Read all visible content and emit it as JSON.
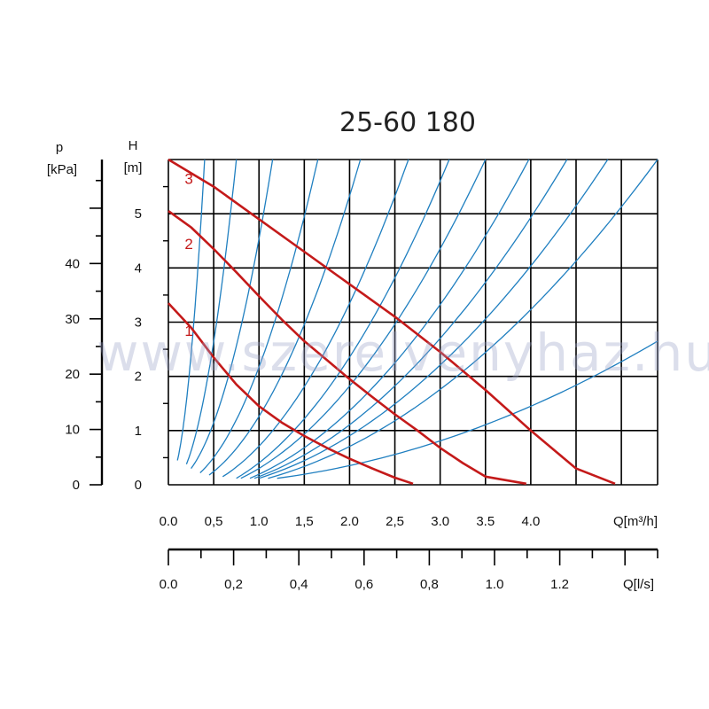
{
  "chart_data": {
    "type": "line",
    "title": "25-60 180",
    "watermark": "www.szerelvenyhaz.hu",
    "axes": {
      "h": {
        "label_symbol": "H",
        "label_unit": "[m]",
        "min": 0,
        "max": 6,
        "ticks": [
          "0",
          "1",
          "2",
          "3",
          "4",
          "5"
        ]
      },
      "p": {
        "label_symbol": "p",
        "label_unit": "[kPa]",
        "min": 0,
        "max": 58.8,
        "ticks": [
          "0",
          "10",
          "20",
          "30",
          "40"
        ]
      },
      "q_m3h": {
        "label": "Q[m³/h]",
        "min": 0,
        "max": 5.4,
        "ticks": [
          "0.0",
          "0,5",
          "1.0",
          "1,5",
          "2.0",
          "2,5",
          "3.0",
          "3.5",
          "4.0"
        ]
      },
      "q_ls": {
        "label": "Q[l/s]",
        "min": 0,
        "max": 1.5,
        "ticks": [
          "0.0",
          "0,2",
          "0,4",
          "0,6",
          "0,8",
          "1.0",
          "1.2"
        ]
      }
    },
    "grid": true,
    "colors": {
      "pump_curve": "#c41a1a",
      "system_curve": "#1f7fc0",
      "grid": "#000000"
    },
    "series": [
      {
        "name": "1",
        "x": [
          0,
          0.25,
          0.5,
          0.75,
          1.0,
          1.25,
          1.5,
          1.75,
          2.0,
          2.25,
          2.5,
          2.7
        ],
        "y": [
          3.35,
          2.9,
          2.35,
          1.85,
          1.45,
          1.15,
          0.9,
          0.68,
          0.48,
          0.3,
          0.13,
          0.02
        ]
      },
      {
        "name": "2",
        "x": [
          0,
          0.25,
          0.5,
          0.75,
          1.0,
          1.25,
          1.5,
          1.75,
          2.0,
          2.25,
          2.5,
          2.75,
          3.0,
          3.25,
          3.5,
          3.95
        ],
        "y": [
          5.05,
          4.75,
          4.35,
          3.92,
          3.48,
          3.05,
          2.65,
          2.3,
          1.95,
          1.62,
          1.3,
          1.0,
          0.68,
          0.4,
          0.15,
          0.02
        ]
      },
      {
        "name": "3",
        "x": [
          0,
          0.5,
          1.0,
          1.5,
          2.0,
          2.5,
          3.0,
          3.5,
          4.0,
          4.5,
          4.93
        ],
        "y": [
          6.0,
          5.5,
          4.9,
          4.3,
          3.7,
          3.1,
          2.45,
          1.75,
          1.0,
          0.3,
          0.02
        ]
      }
    ],
    "system_curves": {
      "q_start": [
        0.1,
        0.2,
        0.25,
        0.35,
        0.45,
        0.6,
        0.75,
        0.8,
        0.9,
        0.95,
        1.0,
        1.1,
        1.2
      ],
      "q_end": [
        0.4,
        0.75,
        1.15,
        1.65,
        2.12,
        2.65,
        3.1,
        3.5,
        3.98,
        4.4,
        4.85,
        5.4,
        5.4
      ],
      "h_end": [
        6.0,
        6.0,
        6.0,
        6.0,
        6.0,
        6.0,
        6.0,
        6.0,
        6.0,
        6.0,
        6.0,
        6.0,
        2.65
      ],
      "h_start": [
        0.45,
        0.38,
        0.3,
        0.22,
        0.18,
        0.15,
        0.12,
        0.12,
        0.12,
        0.12,
        0.12,
        0.12,
        0.12
      ]
    }
  }
}
